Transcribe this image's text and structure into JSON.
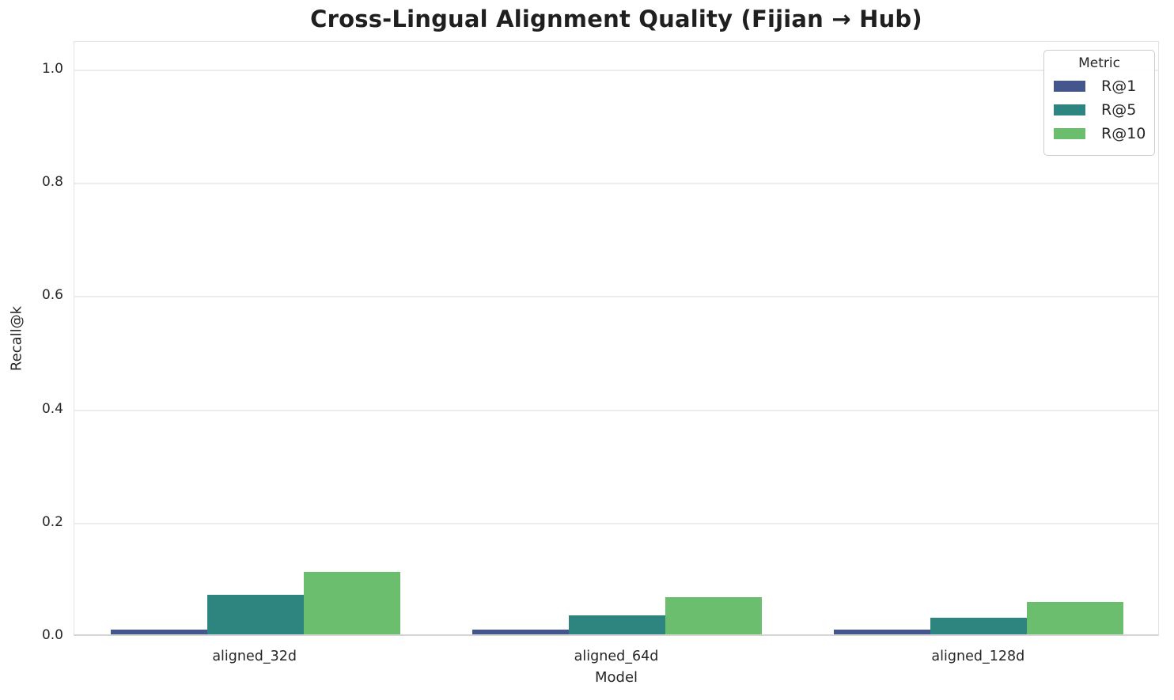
{
  "chart_data": {
    "type": "bar",
    "title": "Cross-Lingual Alignment Quality (Fijian → Hub)",
    "xlabel": "Model",
    "ylabel": "Recall@k",
    "legend_title": "Metric",
    "legend_position": "upper right",
    "grid": "horizontal",
    "categories": [
      "aligned_32d",
      "aligned_64d",
      "aligned_128d"
    ],
    "series": [
      {
        "name": "R@1",
        "color": "#44568B",
        "values": [
          0.008,
          0.008,
          0.008
        ]
      },
      {
        "name": "R@5",
        "color": "#2E847E",
        "values": [
          0.07,
          0.034,
          0.03
        ]
      },
      {
        "name": "R@10",
        "color": "#6ABE6E",
        "values": [
          0.111,
          0.066,
          0.057
        ]
      }
    ],
    "ylim": [
      0,
      1.05
    ],
    "yticks": [
      0.0,
      0.2,
      0.4,
      0.6,
      0.8,
      1.0
    ],
    "ytick_labels": [
      "0.0",
      "0.2",
      "0.4",
      "0.6",
      "0.8",
      "1.0"
    ]
  }
}
